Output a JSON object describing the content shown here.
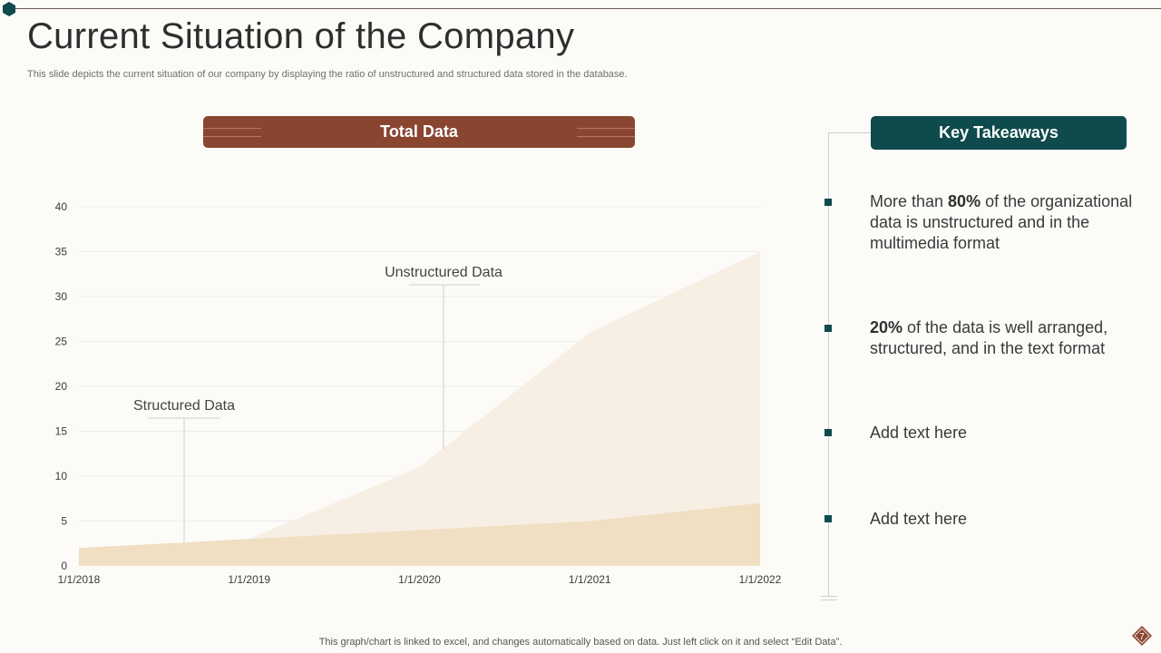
{
  "slide": {
    "title": "Current Situation of the Company",
    "subtitle": "This slide depicts the current situation of our company by displaying the ratio of unstructured and structured data stored in the database.",
    "footer_note": "This graph/chart is linked to excel,  and changes automatically based on data. Just left click on it and select “Edit Data”.",
    "page_number": "7"
  },
  "chart_panel": {
    "banner_title": "Total Data"
  },
  "chart_data": {
    "type": "area",
    "x": [
      "1/1/2018",
      "1/1/2019",
      "1/1/2020",
      "1/1/2021",
      "1/1/2022"
    ],
    "series": [
      {
        "name": "Unstructured  Data",
        "values": [
          0,
          3,
          11,
          26,
          35
        ],
        "color": "#f7efe4"
      },
      {
        "name": "Structured  Data",
        "values": [
          2,
          3,
          4,
          5,
          7
        ],
        "color": "#f0dfc3"
      }
    ],
    "y_ticks": [
      0,
      5,
      10,
      15,
      20,
      25,
      30,
      35,
      40
    ],
    "ylim": [
      0,
      40
    ],
    "grid": true,
    "legend": "callout labels"
  },
  "takeaways": {
    "header": "Key Takeaways",
    "items": [
      {
        "pre": "More than ",
        "bold": "80%",
        "post": " of the organizational data is unstructured and in the multimedia format"
      },
      {
        "pre": "",
        "bold": "20%",
        "post": " of the data is well arranged, structured, and in the text format"
      },
      {
        "pre": "Add text here",
        "bold": "",
        "post": ""
      },
      {
        "pre": "Add text here",
        "bold": "",
        "post": ""
      }
    ]
  },
  "colors": {
    "accent_brown": "#8a4531",
    "accent_teal": "#0f4a4c",
    "background": "#fcfbf8"
  }
}
